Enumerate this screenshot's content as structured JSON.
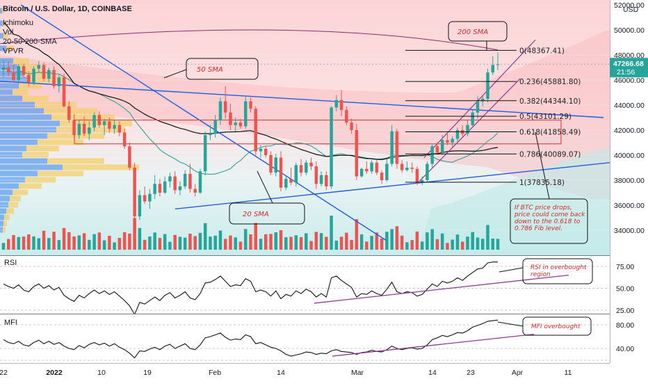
{
  "header": {
    "title": "Bitcoin / U.S. Dollar, 1D, COINBASE",
    "indicators": [
      "Ichimoku",
      "Vol",
      "20-50-200-SMA",
      "VPVR"
    ]
  },
  "currency": "USD",
  "price_axis": {
    "ticks": [
      34000,
      36000,
      38000,
      40000,
      42000,
      44000,
      46000,
      48000,
      50000,
      52000
    ],
    "tick_labels": [
      "34000.00",
      "36000.00",
      "38000.00",
      "40000.00",
      "42000.00",
      "44000.00",
      "46000.00",
      "48000.00",
      "50000.00",
      "52000.00"
    ],
    "current_price": "47266.68",
    "countdown": "21:56"
  },
  "time_axis": {
    "labels": [
      "22",
      "2022",
      "10",
      "19",
      "Feb",
      "14",
      "Mar",
      "14",
      "23",
      "Apr",
      "11"
    ]
  },
  "chart_data": {
    "type": "candlestick",
    "price_range": [
      33000,
      52500
    ],
    "ohlc": [
      {
        "o": 46800,
        "h": 47600,
        "l": 46200,
        "c": 47000
      },
      {
        "o": 47000,
        "h": 47500,
        "l": 46300,
        "c": 46600
      },
      {
        "o": 46600,
        "h": 47200,
        "l": 45800,
        "c": 46000
      },
      {
        "o": 46000,
        "h": 47300,
        "l": 45700,
        "c": 47100
      },
      {
        "o": 47100,
        "h": 47300,
        "l": 46200,
        "c": 46400
      },
      {
        "o": 46400,
        "h": 46700,
        "l": 45500,
        "c": 45800
      },
      {
        "o": 45800,
        "h": 47100,
        "l": 45600,
        "c": 46900
      },
      {
        "o": 46900,
        "h": 47500,
        "l": 46600,
        "c": 47200
      },
      {
        "o": 47200,
        "h": 47400,
        "l": 45900,
        "c": 46100
      },
      {
        "o": 46100,
        "h": 47000,
        "l": 45800,
        "c": 46800
      },
      {
        "o": 46800,
        "h": 47100,
        "l": 45300,
        "c": 45500
      },
      {
        "o": 45500,
        "h": 46400,
        "l": 45000,
        "c": 46200
      },
      {
        "o": 46200,
        "h": 46500,
        "l": 43800,
        "c": 43900
      },
      {
        "o": 43900,
        "h": 44300,
        "l": 42600,
        "c": 42800
      },
      {
        "o": 42800,
        "h": 43300,
        "l": 41400,
        "c": 41600
      },
      {
        "o": 41600,
        "h": 42800,
        "l": 41300,
        "c": 42500
      },
      {
        "o": 42500,
        "h": 43100,
        "l": 41500,
        "c": 41700
      },
      {
        "o": 41700,
        "h": 42700,
        "l": 41200,
        "c": 42200
      },
      {
        "o": 42200,
        "h": 43400,
        "l": 41900,
        "c": 43200
      },
      {
        "o": 43200,
        "h": 43500,
        "l": 42200,
        "c": 42400
      },
      {
        "o": 42400,
        "h": 42900,
        "l": 41600,
        "c": 42700
      },
      {
        "o": 42700,
        "h": 43000,
        "l": 41800,
        "c": 42100
      },
      {
        "o": 42100,
        "h": 42800,
        "l": 41700,
        "c": 42400
      },
      {
        "o": 42400,
        "h": 42700,
        "l": 41500,
        "c": 41800
      },
      {
        "o": 41800,
        "h": 42100,
        "l": 40500,
        "c": 40700
      },
      {
        "o": 40700,
        "h": 41000,
        "l": 38800,
        "c": 39000
      },
      {
        "o": 39000,
        "h": 39400,
        "l": 34500,
        "c": 35100
      },
      {
        "o": 35100,
        "h": 37200,
        "l": 34800,
        "c": 36800
      },
      {
        "o": 36800,
        "h": 37500,
        "l": 36100,
        "c": 36300
      },
      {
        "o": 36300,
        "h": 37300,
        "l": 35700,
        "c": 36900
      },
      {
        "o": 36900,
        "h": 38400,
        "l": 36500,
        "c": 37700
      },
      {
        "o": 37700,
        "h": 38100,
        "l": 36700,
        "c": 37000
      },
      {
        "o": 37000,
        "h": 38300,
        "l": 36900,
        "c": 37900
      },
      {
        "o": 37900,
        "h": 38600,
        "l": 37400,
        "c": 38300
      },
      {
        "o": 38300,
        "h": 38700,
        "l": 36900,
        "c": 37200
      },
      {
        "o": 37200,
        "h": 37900,
        "l": 36800,
        "c": 37500
      },
      {
        "o": 37500,
        "h": 38800,
        "l": 37300,
        "c": 38500
      },
      {
        "o": 38500,
        "h": 39300,
        "l": 37000,
        "c": 37300
      },
      {
        "o": 37300,
        "h": 37700,
        "l": 36700,
        "c": 37000
      },
      {
        "o": 37000,
        "h": 38900,
        "l": 36900,
        "c": 38700
      },
      {
        "o": 38700,
        "h": 41900,
        "l": 38400,
        "c": 41600
      },
      {
        "o": 41600,
        "h": 42400,
        "l": 41200,
        "c": 41700
      },
      {
        "o": 41700,
        "h": 43200,
        "l": 41400,
        "c": 42800
      },
      {
        "o": 42800,
        "h": 44600,
        "l": 42400,
        "c": 44300
      },
      {
        "o": 44300,
        "h": 45500,
        "l": 42900,
        "c": 43400
      },
      {
        "o": 43400,
        "h": 44100,
        "l": 42000,
        "c": 42400
      },
      {
        "o": 42400,
        "h": 43000,
        "l": 41900,
        "c": 42600
      },
      {
        "o": 42600,
        "h": 42900,
        "l": 42100,
        "c": 42300
      },
      {
        "o": 42300,
        "h": 44700,
        "l": 42100,
        "c": 44300
      },
      {
        "o": 44300,
        "h": 44600,
        "l": 43400,
        "c": 43700
      },
      {
        "o": 43700,
        "h": 43900,
        "l": 40000,
        "c": 40300
      },
      {
        "o": 40300,
        "h": 40800,
        "l": 39800,
        "c": 40500
      },
      {
        "o": 40500,
        "h": 40700,
        "l": 39800,
        "c": 40000
      },
      {
        "o": 40000,
        "h": 40300,
        "l": 38400,
        "c": 38600
      },
      {
        "o": 38600,
        "h": 40100,
        "l": 38300,
        "c": 39800
      },
      {
        "o": 39800,
        "h": 40300,
        "l": 37100,
        "c": 37400
      },
      {
        "o": 37400,
        "h": 38300,
        "l": 37200,
        "c": 38100
      },
      {
        "o": 38100,
        "h": 39000,
        "l": 37600,
        "c": 37800
      },
      {
        "o": 37800,
        "h": 39400,
        "l": 37500,
        "c": 39200
      },
      {
        "o": 39200,
        "h": 39700,
        "l": 38300,
        "c": 38600
      },
      {
        "o": 38600,
        "h": 39600,
        "l": 38400,
        "c": 39400
      },
      {
        "o": 39400,
        "h": 39800,
        "l": 38800,
        "c": 39100
      },
      {
        "o": 39100,
        "h": 39500,
        "l": 37300,
        "c": 37700
      },
      {
        "o": 37700,
        "h": 38700,
        "l": 37500,
        "c": 38400
      },
      {
        "o": 38400,
        "h": 38700,
        "l": 37200,
        "c": 37500
      },
      {
        "o": 37500,
        "h": 43900,
        "l": 37300,
        "c": 43800
      },
      {
        "o": 43800,
        "h": 44800,
        "l": 43500,
        "c": 44400
      },
      {
        "o": 44400,
        "h": 45200,
        "l": 43100,
        "c": 43600
      },
      {
        "o": 43600,
        "h": 43900,
        "l": 42400,
        "c": 42600
      },
      {
        "o": 42600,
        "h": 42900,
        "l": 41700,
        "c": 42000
      },
      {
        "o": 42000,
        "h": 42500,
        "l": 38000,
        "c": 38300
      },
      {
        "o": 38300,
        "h": 39000,
        "l": 38200,
        "c": 38900
      },
      {
        "o": 38900,
        "h": 39500,
        "l": 38500,
        "c": 38700
      },
      {
        "o": 38700,
        "h": 39600,
        "l": 38500,
        "c": 39400
      },
      {
        "o": 39400,
        "h": 39600,
        "l": 38400,
        "c": 38600
      },
      {
        "o": 38600,
        "h": 38800,
        "l": 37700,
        "c": 38000
      },
      {
        "o": 38000,
        "h": 39700,
        "l": 37900,
        "c": 39300
      },
      {
        "o": 39300,
        "h": 42400,
        "l": 39100,
        "c": 41900
      },
      {
        "o": 41900,
        "h": 42100,
        "l": 38900,
        "c": 39300
      },
      {
        "o": 39300,
        "h": 39600,
        "l": 38600,
        "c": 38800
      },
      {
        "o": 38800,
        "h": 39500,
        "l": 38700,
        "c": 39000
      },
      {
        "o": 39000,
        "h": 39400,
        "l": 38600,
        "c": 38900
      },
      {
        "o": 38900,
        "h": 39100,
        "l": 37600,
        "c": 37800
      },
      {
        "o": 37800,
        "h": 38300,
        "l": 37600,
        "c": 38000
      },
      {
        "o": 38000,
        "h": 39500,
        "l": 37900,
        "c": 39300
      },
      {
        "o": 39300,
        "h": 40900,
        "l": 39000,
        "c": 40700
      },
      {
        "o": 40700,
        "h": 41000,
        "l": 40000,
        "c": 40200
      },
      {
        "o": 40200,
        "h": 41600,
        "l": 40000,
        "c": 41200
      },
      {
        "o": 41200,
        "h": 41900,
        "l": 40800,
        "c": 41000
      },
      {
        "o": 41000,
        "h": 41500,
        "l": 40600,
        "c": 41300
      },
      {
        "o": 41300,
        "h": 42200,
        "l": 41000,
        "c": 42000
      },
      {
        "o": 42000,
        "h": 42400,
        "l": 41500,
        "c": 41700
      },
      {
        "o": 41700,
        "h": 42800,
        "l": 41500,
        "c": 42400
      },
      {
        "o": 42400,
        "h": 43600,
        "l": 42200,
        "c": 43400
      },
      {
        "o": 43400,
        "h": 44700,
        "l": 42900,
        "c": 44300
      },
      {
        "o": 44300,
        "h": 44700,
        "l": 43900,
        "c": 44500
      },
      {
        "o": 44500,
        "h": 46900,
        "l": 44200,
        "c": 46600
      },
      {
        "o": 46600,
        "h": 47900,
        "l": 46400,
        "c": 47200
      },
      {
        "o": 47200,
        "h": 48200,
        "l": 46800,
        "c": 47266
      }
    ],
    "fib_levels": [
      {
        "ratio": "0",
        "price": 48367.41,
        "label": "0(48367.41)"
      },
      {
        "ratio": "0.236",
        "price": 45881.8,
        "label": "0.236(45881.80)"
      },
      {
        "ratio": "0.382",
        "price": 44344.1,
        "label": "0.382(44344.10)"
      },
      {
        "ratio": "0.5",
        "price": 43101.29,
        "label": "0.5(43101.29)"
      },
      {
        "ratio": "0.618",
        "price": 41858.49,
        "label": "0.618(41858.49)"
      },
      {
        "ratio": "0.786",
        "price": 40089.07,
        "label": "0.786(40089.07)"
      },
      {
        "ratio": "1",
        "price": 37835.18,
        "label": "1(37835.18)"
      }
    ],
    "rsi": {
      "label": "RSI",
      "ticks": [
        "75.00",
        "50.00",
        "25.00"
      ],
      "values": [
        55,
        52,
        50,
        54,
        48,
        46,
        52,
        55,
        50,
        53,
        48,
        51,
        42,
        38,
        35,
        42,
        39,
        44,
        48,
        44,
        47,
        43,
        46,
        41,
        36,
        30,
        20,
        34,
        32,
        36,
        40,
        36,
        42,
        45,
        39,
        42,
        46,
        39,
        37,
        44,
        56,
        57,
        60,
        64,
        58,
        52,
        54,
        53,
        61,
        58,
        46,
        48,
        46,
        41,
        47,
        38,
        43,
        41,
        47,
        44,
        49,
        46,
        40,
        44,
        40,
        62,
        64,
        59,
        55,
        51,
        40,
        44,
        43,
        47,
        44,
        42,
        49,
        57,
        46,
        44,
        46,
        45,
        41,
        43,
        49,
        55,
        52,
        58,
        56,
        58,
        62,
        59,
        64,
        68,
        72,
        73,
        79,
        80,
        80
      ],
      "annotation": "RSI in overbought region"
    },
    "mfi": {
      "label": "MFI",
      "ticks": [
        "80.00",
        "40.00"
      ],
      "values": [
        55,
        50,
        48,
        52,
        46,
        44,
        50,
        54,
        48,
        52,
        47,
        50,
        44,
        40,
        38,
        45,
        41,
        47,
        50,
        46,
        49,
        44,
        48,
        42,
        38,
        32,
        24,
        36,
        35,
        39,
        42,
        38,
        44,
        47,
        40,
        44,
        48,
        40,
        38,
        46,
        58,
        60,
        63,
        66,
        59,
        54,
        56,
        55,
        63,
        60,
        48,
        50,
        46,
        42,
        40,
        36,
        30,
        27,
        29,
        31,
        34,
        33,
        30,
        32,
        31,
        36,
        38,
        35,
        34,
        33,
        30,
        33,
        34,
        37,
        35,
        34,
        38,
        44,
        40,
        38,
        40,
        41,
        39,
        40,
        46,
        55,
        58,
        62,
        60,
        63,
        67,
        66,
        70,
        76,
        79,
        82,
        86,
        87,
        88
      ],
      "annotation": "MFI overbought"
    },
    "annotations": {
      "sma20": "20 SMA",
      "sma50": "50 SMA",
      "sma200": "200 SMA",
      "note": "If BTC price drops, price could come back down to the 0.618 to 0.786 Fib level."
    }
  },
  "colors": {
    "bull": "#26a69a",
    "bear": "#ef5350",
    "trend": "#1e5ee6",
    "channel": "#8e3a8e",
    "zone": "#e0454a"
  }
}
